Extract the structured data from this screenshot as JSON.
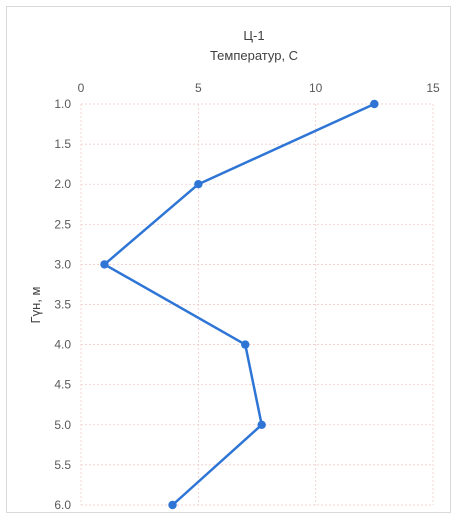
{
  "chart_data": {
    "type": "line",
    "title": "Ц-1",
    "subtitle": "Температур, C",
    "ylabel": "Гүн, м",
    "xlabel": "",
    "x_axis_position": "top",
    "y_axis_inverted": true,
    "xlim": [
      0,
      15
    ],
    "ylim": [
      1.0,
      6.0
    ],
    "x_ticks": [
      "0",
      "5",
      "10",
      "15"
    ],
    "y_ticks": [
      "1.0",
      "1.5",
      "2.0",
      "2.5",
      "3.0",
      "3.5",
      "4.0",
      "4.5",
      "5.0",
      "5.5",
      "6.0"
    ],
    "grid": true,
    "series": [
      {
        "color": "#2e75d6",
        "points": [
          {
            "temperature": 12.5,
            "depth": 1.0
          },
          {
            "temperature": 5.0,
            "depth": 2.0
          },
          {
            "temperature": 1.0,
            "depth": 3.0
          },
          {
            "temperature": 7.0,
            "depth": 4.0
          },
          {
            "temperature": 7.7,
            "depth": 5.0
          },
          {
            "temperature": 3.9,
            "depth": 6.0
          }
        ]
      }
    ]
  }
}
